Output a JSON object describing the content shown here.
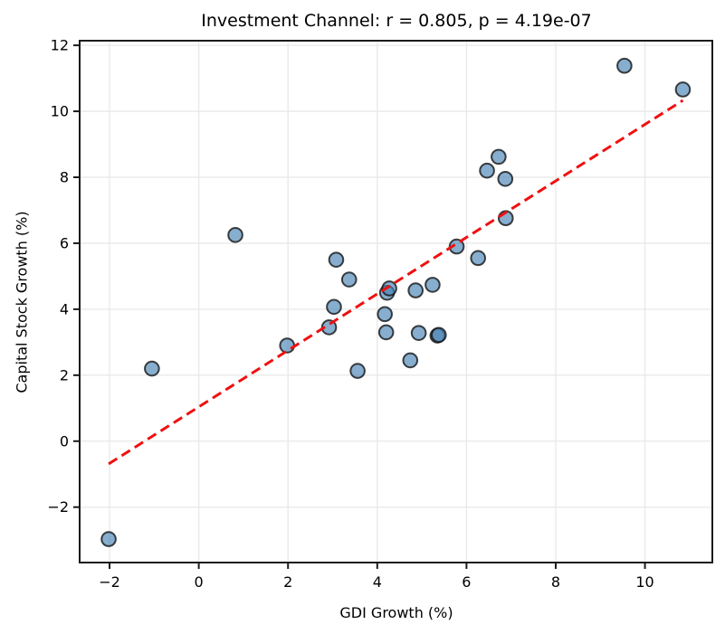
{
  "title": "Investment Channel: r = 0.805, p = 4.19e-07",
  "chart_data": {
    "type": "scatter",
    "title": "Investment Channel: r = 0.805, p = 4.19e-07",
    "xlabel": "GDI Growth (%)",
    "ylabel": "Capital Stock Growth (%)",
    "xlim": [
      -2.67,
      11.51
    ],
    "ylim": [
      -3.68,
      12.14
    ],
    "xticks": [
      -2,
      0,
      2,
      4,
      6,
      8,
      10
    ],
    "yticks": [
      -2,
      0,
      2,
      4,
      6,
      8,
      10,
      12
    ],
    "xtick_labels": [
      "−2",
      "0",
      "2",
      "4",
      "6",
      "8",
      "10"
    ],
    "ytick_labels": [
      "−2",
      "0",
      "2",
      "4",
      "6",
      "8",
      "10",
      "12"
    ],
    "grid": true,
    "grid_color": "#e8e8e8",
    "spine_color": "#1a1a1a",
    "legend": "none",
    "stats": {
      "r": 0.805,
      "p": "4.19e-07"
    },
    "points": [
      [
        -2.02,
        -2.97
      ],
      [
        -1.05,
        2.2
      ],
      [
        0.82,
        6.25
      ],
      [
        1.98,
        2.9
      ],
      [
        2.92,
        3.45
      ],
      [
        3.03,
        4.07
      ],
      [
        3.08,
        5.5
      ],
      [
        3.37,
        4.9
      ],
      [
        3.56,
        2.13
      ],
      [
        4.17,
        3.85
      ],
      [
        4.2,
        3.3
      ],
      [
        4.22,
        4.5
      ],
      [
        4.27,
        4.63
      ],
      [
        4.74,
        2.45
      ],
      [
        4.86,
        4.57
      ],
      [
        4.93,
        3.28
      ],
      [
        5.24,
        4.74
      ],
      [
        5.35,
        3.2
      ],
      [
        5.38,
        3.22
      ],
      [
        5.78,
        5.9
      ],
      [
        6.26,
        5.55
      ],
      [
        6.46,
        8.2
      ],
      [
        6.72,
        8.62
      ],
      [
        6.87,
        7.95
      ],
      [
        6.88,
        6.76
      ],
      [
        9.54,
        11.38
      ],
      [
        10.85,
        10.66
      ]
    ],
    "marker": {
      "fill": "#4682b4",
      "fill_opacity": 0.65,
      "edge": "#0f0f0f",
      "edge_opacity": 0.78,
      "radius": 7.8
    },
    "trendline": {
      "style": "dashed",
      "color": "#f01010",
      "x": [
        -2.02,
        10.85
      ],
      "y": [
        -0.69,
        10.33
      ]
    }
  }
}
